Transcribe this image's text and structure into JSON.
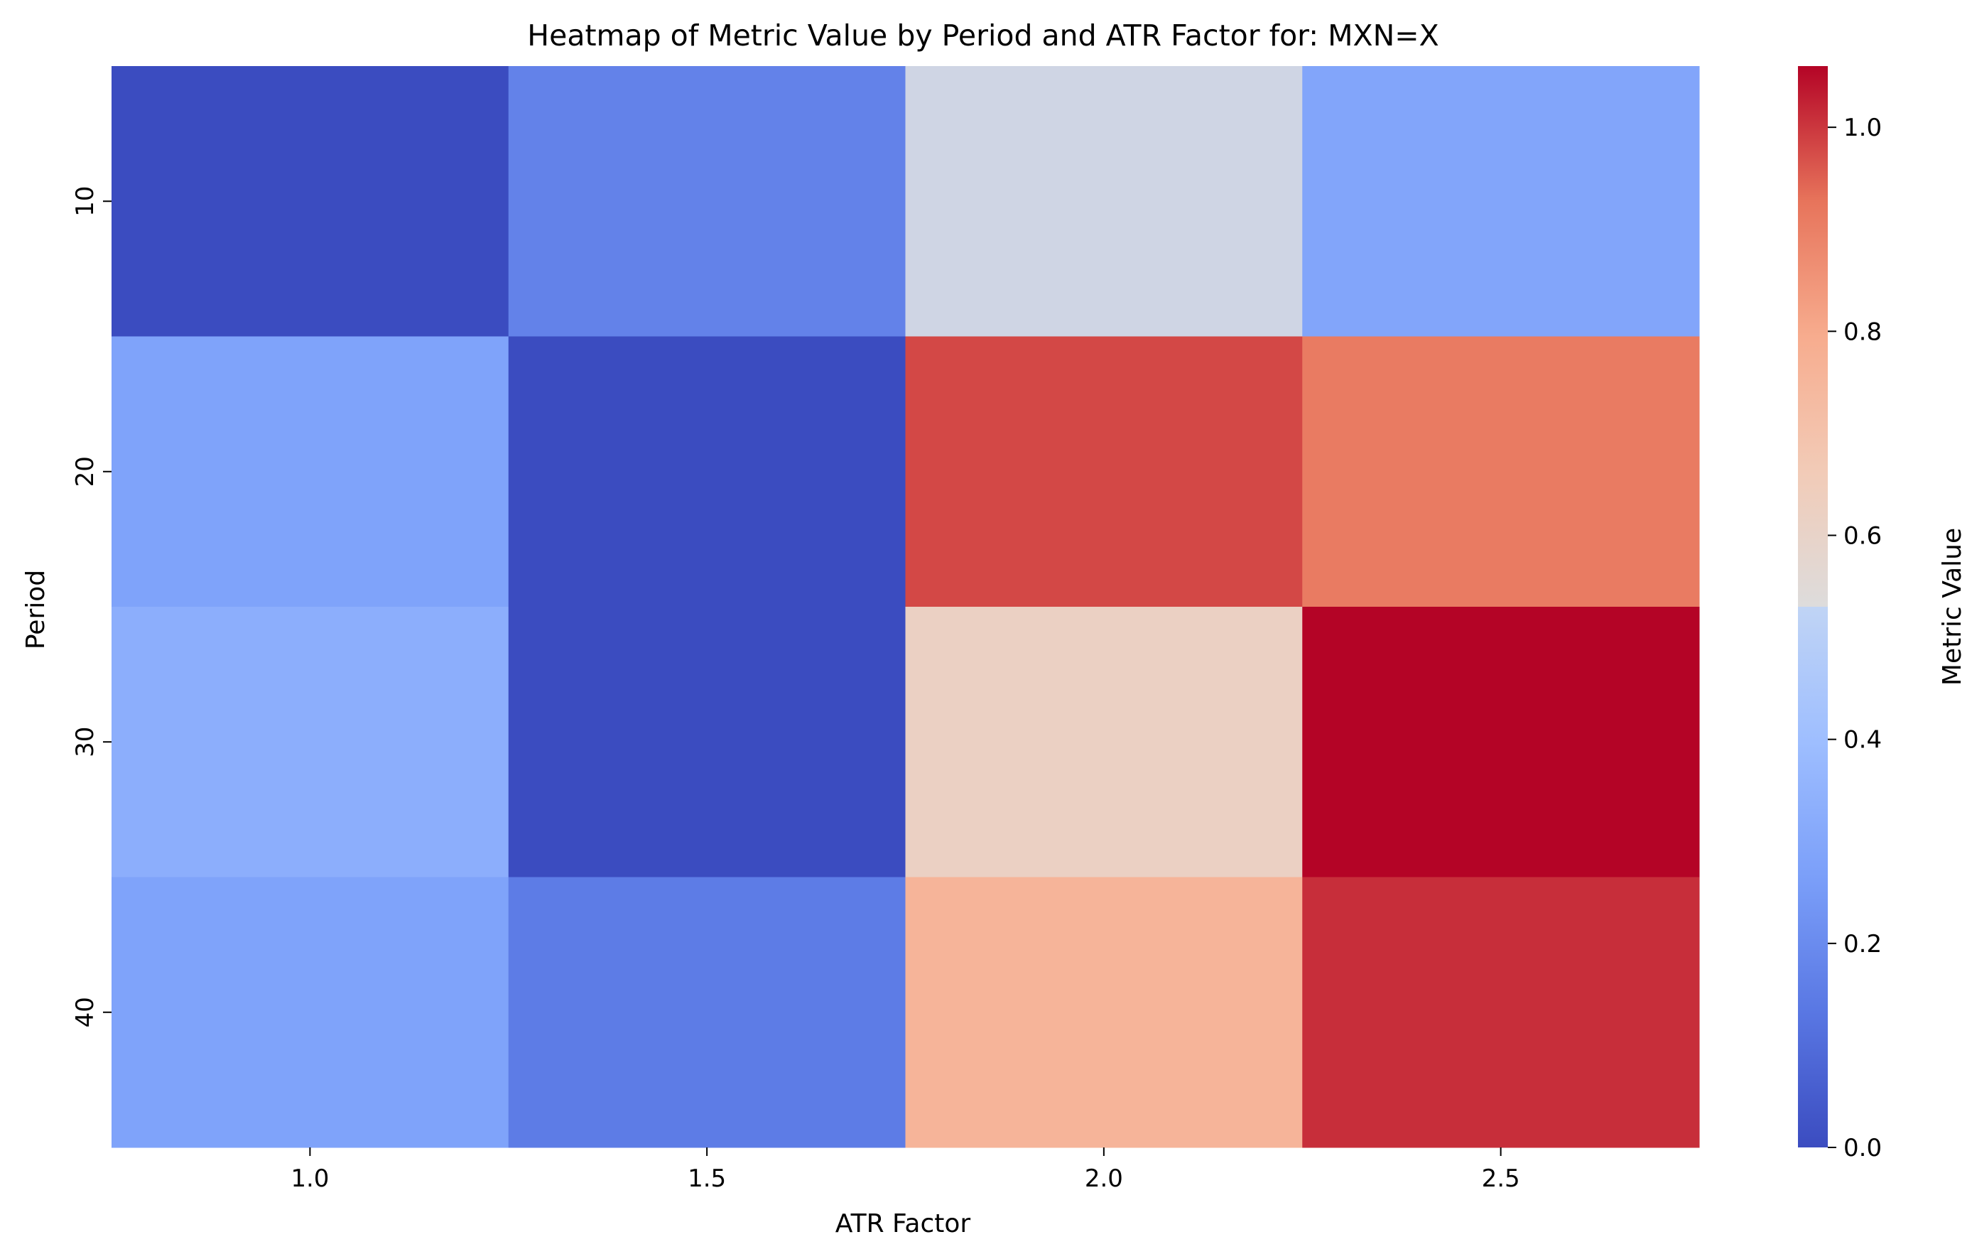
{
  "chart_data": {
    "type": "heatmap",
    "title": "Heatmap of Metric Value by Period and ATR Factor for: MXN=X",
    "xlabel": "ATR Factor",
    "ylabel": "Period",
    "x_categories": [
      "1.0",
      "1.5",
      "2.0",
      "2.5"
    ],
    "y_categories": [
      "10",
      "20",
      "30",
      "40"
    ],
    "values": [
      [
        0.0,
        0.17,
        0.5,
        0.29
      ],
      [
        0.28,
        0.0,
        0.98,
        0.91
      ],
      [
        0.33,
        0.0,
        0.62,
        1.06
      ],
      [
        0.28,
        0.15,
        0.76,
        1.01
      ]
    ],
    "colormap": "coolwarm",
    "colorbar": {
      "label": "Metric Value",
      "range": [
        0.0,
        1.06
      ],
      "ticks": [
        0.0,
        0.2,
        0.4,
        0.6,
        0.8,
        1.0
      ],
      "tick_labels": [
        "0.0",
        "0.2",
        "0.4",
        "0.6",
        "0.8",
        "1.0"
      ]
    }
  }
}
